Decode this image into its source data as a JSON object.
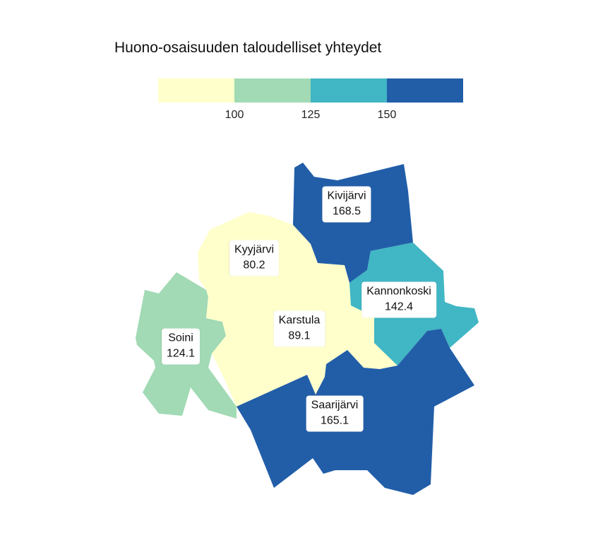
{
  "title": "Huono-osaisuuden taloudelliset yhteydet",
  "legend": {
    "colors": [
      "#ffffcc",
      "#a1dab4",
      "#41b6c4",
      "#225ea8"
    ],
    "ticks": [
      "100",
      "125",
      "150"
    ]
  },
  "regions": [
    {
      "id": "kivijarvi",
      "name": "Kivijärvi",
      "value": "168.5",
      "color": "#225ea8"
    },
    {
      "id": "kyyjarvi",
      "name": "Kyyjärvi",
      "value": "80.2",
      "color": "#ffffcc"
    },
    {
      "id": "kannonkoski",
      "name": "Kannonkoski",
      "value": "142.4",
      "color": "#41b6c4"
    },
    {
      "id": "karstula",
      "name": "Karstula",
      "value": "89.1",
      "color": "#ffffcc"
    },
    {
      "id": "soini",
      "name": "Soini",
      "value": "124.1",
      "color": "#a1dab4"
    },
    {
      "id": "saarijarvi",
      "name": "Saarijärvi",
      "value": "165.1",
      "color": "#225ea8"
    }
  ]
}
